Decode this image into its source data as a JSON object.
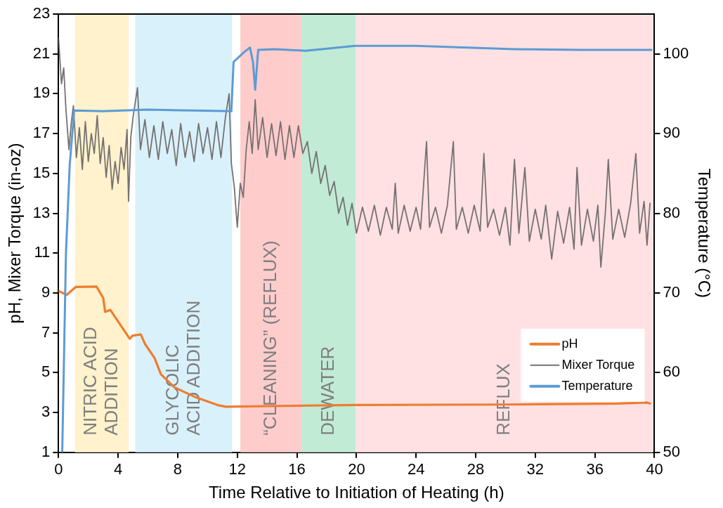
{
  "chart_data": {
    "type": "line",
    "xlabel": "Time Relative to Initiation of Heating (h)",
    "ylabel": "pH, Mixer Torque (in-oz)",
    "y2label": "Temperature (°C)",
    "xlim": [
      0,
      40
    ],
    "xticks": [
      0,
      4,
      8,
      12,
      16,
      20,
      24,
      28,
      32,
      36,
      40
    ],
    "ylim": [
      1,
      23
    ],
    "yticks": [
      1,
      3,
      5,
      7,
      9,
      11,
      13,
      15,
      17,
      19,
      21,
      23
    ],
    "y2lim": [
      50,
      105
    ],
    "y2ticks": [
      50,
      60,
      70,
      80,
      90,
      100
    ],
    "grid": false,
    "legend": "bottom right",
    "marker": "none",
    "line_style": "solid",
    "bands": [
      {
        "axis": "x",
        "from": 1.1,
        "to": 4.7,
        "label": "NITRIC ACID\nADDITION",
        "color": "#fff2cc"
      },
      {
        "axis": "x",
        "from": 5.15,
        "to": 11.65,
        "label": "GLYCOLIC\nACID ADDITION",
        "color": "#d9f1fb"
      },
      {
        "axis": "x",
        "from": 12.2,
        "to": 16.3,
        "label": "“CLEANING” (REFLUX)",
        "color": "#ffcccc"
      },
      {
        "axis": "x",
        "from": 16.3,
        "to": 19.95,
        "label": "DEWATER",
        "color": "#c1ebd5"
      },
      {
        "axis": "x",
        "from": 19.95,
        "to": 39.9,
        "label": "REFLUX",
        "color": "#ffe1e3"
      }
    ],
    "series": [
      {
        "name": "pH",
        "color": "#ed7d31",
        "x": [
          0,
          0.55,
          1.15,
          2.55,
          3.0,
          3.13,
          3.48,
          4.78,
          4.95,
          5.52,
          5.8,
          6.45,
          6.87,
          7.77,
          9.1,
          10.75,
          11.25,
          14,
          20,
          30,
          37.5,
          39.5,
          39.7
        ],
        "values": [
          9.1,
          8.9,
          9.3,
          9.32,
          8.75,
          8.05,
          8.15,
          6.7,
          6.85,
          6.92,
          6.45,
          5.73,
          4.92,
          4.27,
          3.8,
          3.36,
          3.29,
          3.32,
          3.38,
          3.4,
          3.45,
          3.5,
          3.45
        ]
      },
      {
        "name": "Mixer Torque",
        "color": "#767171",
        "x": [
          0,
          0.2,
          0.35,
          0.5,
          0.7,
          0.85,
          1.0,
          1.2,
          1.4,
          1.6,
          1.8,
          2.0,
          2.2,
          2.4,
          2.6,
          2.8,
          3.0,
          3.2,
          3.4,
          3.6,
          3.8,
          4.0,
          4.2,
          4.4,
          4.6,
          4.7,
          4.85,
          5.0,
          5.3,
          5.5,
          5.8,
          6.1,
          6.4,
          6.7,
          7.0,
          7.3,
          7.6,
          7.9,
          8.2,
          8.5,
          8.8,
          9.1,
          9.4,
          9.7,
          10.0,
          10.3,
          10.6,
          10.9,
          11.2,
          11.45,
          11.6,
          11.8,
          12.0,
          12.2,
          12.4,
          12.6,
          12.8,
          13.0,
          13.2,
          13.4,
          13.7,
          14.0,
          14.3,
          14.6,
          14.9,
          15.2,
          15.5,
          15.8,
          16.1,
          16.4,
          16.7,
          17.0,
          17.3,
          17.6,
          17.9,
          18.2,
          18.5,
          18.8,
          19.1,
          19.4,
          19.7,
          20.0,
          20.4,
          20.8,
          21.2,
          21.6,
          22.0,
          22.4,
          22.6,
          22.8,
          23.2,
          23.6,
          24.0,
          24.3,
          24.7,
          24.9,
          25.3,
          25.7,
          26.1,
          26.5,
          26.7,
          27.1,
          27.5,
          27.9,
          28.3,
          28.55,
          28.8,
          29.2,
          29.6,
          30.0,
          30.3,
          30.6,
          30.9,
          31.3,
          31.6,
          32.0,
          32.4,
          32.7,
          33.1,
          33.5,
          33.9,
          34.3,
          34.6,
          34.8,
          35.1,
          35.5,
          35.9,
          36.2,
          36.4,
          36.7,
          36.9,
          37.2,
          37.6,
          38.0,
          38.4,
          38.75,
          39.0,
          39.3,
          39.5,
          39.7
        ],
        "values": [
          21.8,
          19.5,
          20.3,
          18.2,
          16.2,
          17.5,
          18.4,
          15.8,
          17.3,
          15.2,
          17.6,
          15.6,
          17.0,
          16.0,
          17.9,
          15.5,
          16.8,
          14.8,
          16.4,
          14.2,
          15.6,
          14.5,
          16.3,
          15.2,
          17.2,
          13.6,
          16.8,
          17.8,
          19.3,
          16.2,
          17.7,
          15.8,
          17.4,
          15.7,
          17.6,
          16.0,
          17.2,
          15.4,
          17.5,
          15.8,
          17.1,
          15.6,
          17.5,
          16.0,
          17.3,
          15.7,
          17.6,
          15.8,
          17.8,
          19.0,
          15.5,
          14.3,
          12.3,
          14.5,
          13.8,
          16.2,
          17.6,
          16.0,
          18.7,
          16.2,
          17.8,
          15.8,
          17.5,
          15.9,
          17.6,
          15.7,
          17.4,
          15.8,
          17.4,
          16.0,
          16.6,
          15.0,
          16.1,
          14.5,
          15.4,
          13.9,
          14.6,
          13.0,
          13.8,
          12.4,
          13.5,
          12.0,
          13.3,
          12.1,
          13.4,
          11.9,
          13.3,
          12.2,
          14.5,
          12.0,
          13.4,
          12.1,
          13.3,
          12.2,
          16.6,
          12.3,
          13.3,
          12.0,
          13.4,
          16.6,
          12.2,
          13.3,
          12.0,
          13.4,
          12.1,
          16.0,
          12.3,
          13.2,
          11.9,
          13.3,
          11.4,
          15.7,
          12.0,
          15.3,
          11.6,
          13.2,
          11.7,
          13.4,
          10.7,
          13.1,
          11.5,
          13.3,
          11.2,
          15.3,
          11.4,
          13.2,
          11.6,
          13.4,
          10.3,
          13.0,
          15.7,
          11.7,
          13.2,
          11.8,
          13.5,
          16.0,
          12.0,
          13.6,
          11.4,
          13.5
        ]
      },
      {
        "name": "Temperature",
        "color": "#5b9bd5",
        "axis": "y2",
        "x": [
          0.25,
          0.5,
          0.75,
          1.05,
          3,
          6,
          9,
          11.6,
          11.75,
          12.45,
          12.85,
          13.05,
          13.2,
          13.4,
          14.5,
          16.6,
          19.9,
          24,
          30.6,
          35,
          39.8
        ],
        "values": [
          50,
          75,
          86,
          92.9,
          92.8,
          93,
          92.9,
          92.8,
          99,
          100.2,
          100.8,
          99,
          95.5,
          100.5,
          100.6,
          100.4,
          101,
          101,
          100.6,
          100.5,
          100.5
        ]
      }
    ]
  }
}
